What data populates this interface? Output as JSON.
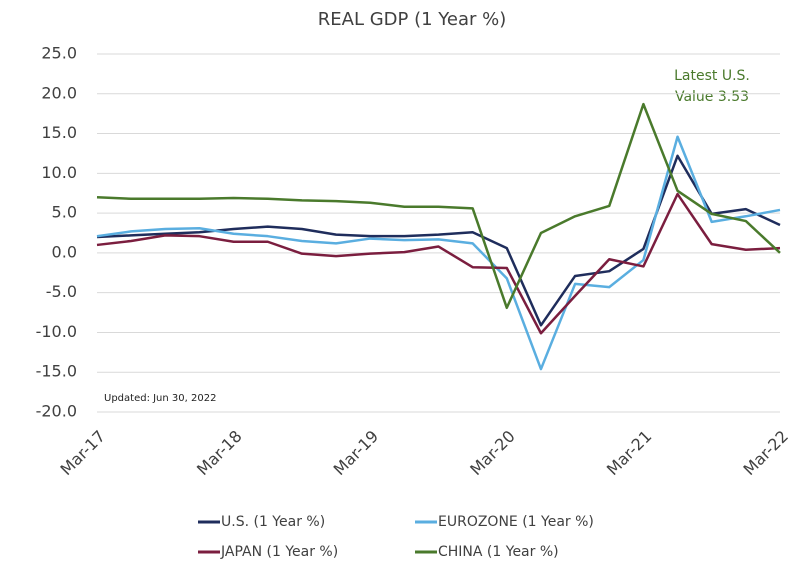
{
  "chart_data": {
    "type": "line",
    "title": "REAL GDP (1 Year %)",
    "categories": [
      "Mar-17",
      null,
      null,
      null,
      "Mar-18",
      null,
      null,
      null,
      "Mar-19",
      null,
      null,
      null,
      "Mar-20",
      null,
      null,
      null,
      "Mar-21",
      null,
      null,
      null,
      "Mar-22"
    ],
    "series": [
      {
        "name": "U.S. (1 Year %)",
        "color": "#1f2d5c",
        "values": [
          2.0,
          2.2,
          2.4,
          2.6,
          3.0,
          3.3,
          3.0,
          2.3,
          2.1,
          2.1,
          2.3,
          2.6,
          0.6,
          -9.1,
          -2.9,
          -2.3,
          0.5,
          12.2,
          4.9,
          5.5,
          3.5
        ]
      },
      {
        "name": "EUROZONE (1 Year %)",
        "color": "#5aaee0",
        "values": [
          2.1,
          2.7,
          3.0,
          3.1,
          2.4,
          2.1,
          1.5,
          1.2,
          1.8,
          1.6,
          1.7,
          1.2,
          -3.2,
          -14.6,
          -3.9,
          -4.3,
          -0.9,
          14.6,
          3.9,
          4.6,
          5.4
        ]
      },
      {
        "name": "JAPAN (1 Year %)",
        "color": "#7b1e3f",
        "values": [
          1.0,
          1.5,
          2.2,
          2.1,
          1.4,
          1.4,
          -0.1,
          -0.4,
          -0.1,
          0.1,
          0.8,
          -1.8,
          -1.9,
          -10.1,
          -5.4,
          -0.8,
          -1.7,
          7.4,
          1.1,
          0.4,
          0.6
        ]
      },
      {
        "name": "CHINA (1 Year %)",
        "color": "#4a7a2c",
        "values": [
          7.0,
          6.8,
          6.8,
          6.8,
          6.9,
          6.8,
          6.6,
          6.5,
          6.3,
          5.8,
          5.8,
          5.6,
          -6.9,
          2.5,
          4.6,
          5.9,
          18.7,
          7.8,
          4.9,
          4.0,
          0.0
        ]
      }
    ],
    "ylim": [
      -20,
      25
    ],
    "yticks": [
      {
        "value": -20,
        "label": "-20.0"
      },
      {
        "value": -15,
        "label": "-15.0"
      },
      {
        "value": -10,
        "label": "-10.0"
      },
      {
        "value": -5,
        "label": "-5.0"
      },
      {
        "value": 0,
        "label": "0.0"
      },
      {
        "value": 5,
        "label": "5.0"
      },
      {
        "value": 10,
        "label": "10.0"
      },
      {
        "value": 15,
        "label": "15.0"
      },
      {
        "value": 20,
        "label": "20.0"
      },
      {
        "value": 25,
        "label": "25.0"
      }
    ],
    "grid": true,
    "annotations": [
      "Latest U.S.",
      "Value 3.53"
    ],
    "note": "Updated: Jun 30, 2022"
  }
}
